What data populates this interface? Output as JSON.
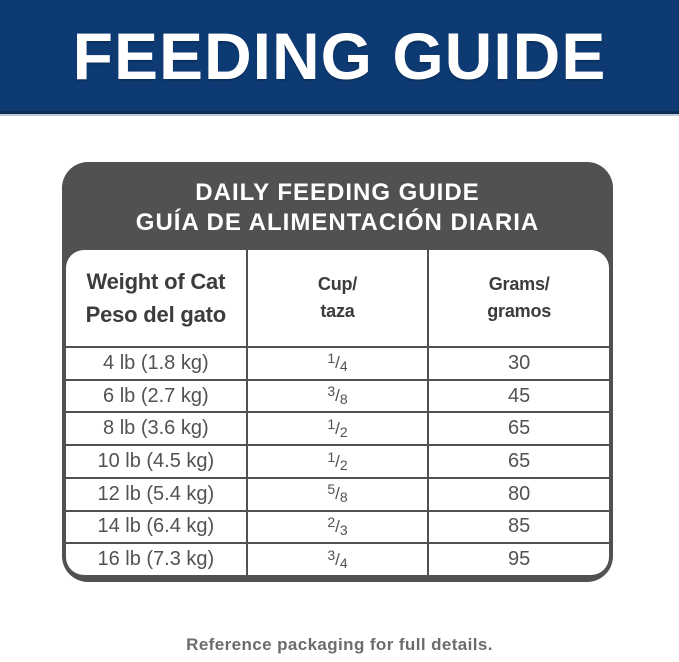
{
  "banner": {
    "title": "FEEDING GUIDE"
  },
  "table": {
    "title_line1": "DAILY FEEDING GUIDE",
    "title_line2": "GUÍA DE ALIMENTACIÓN DIARIA",
    "columns": [
      {
        "line1": "Weight of Cat",
        "line2": "Peso del gato"
      },
      {
        "line1": "Cup/",
        "line2": "taza"
      },
      {
        "line1": "Grams/",
        "line2": "gramos"
      }
    ],
    "rows": [
      {
        "weight": "4 lb (1.8 kg)",
        "cup_num": "1",
        "cup_den": "4",
        "grams": "30"
      },
      {
        "weight": "6 lb (2.7 kg)",
        "cup_num": "3",
        "cup_den": "8",
        "grams": "45"
      },
      {
        "weight": "8 lb (3.6 kg)",
        "cup_num": "1",
        "cup_den": "2",
        "grams": "65"
      },
      {
        "weight": "10 lb (4.5 kg)",
        "cup_num": "1",
        "cup_den": "2",
        "grams": "65"
      },
      {
        "weight": "12 lb (5.4 kg)",
        "cup_num": "5",
        "cup_den": "8",
        "grams": "80"
      },
      {
        "weight": "14 lb (6.4 kg)",
        "cup_num": "2",
        "cup_den": "3",
        "grams": "85"
      },
      {
        "weight": "16 lb (7.3 kg)",
        "cup_num": "3",
        "cup_den": "4",
        "grams": "95"
      }
    ]
  },
  "footer": {
    "note": "Reference packaging for full details."
  },
  "colors": {
    "banner_blue": "#0d3a72",
    "banner_edge": "#0a2c56",
    "table_gray": "#505153",
    "header_text": "#3b3c3e",
    "cell_text": "#515254",
    "footer_text": "#6b6c6e"
  }
}
